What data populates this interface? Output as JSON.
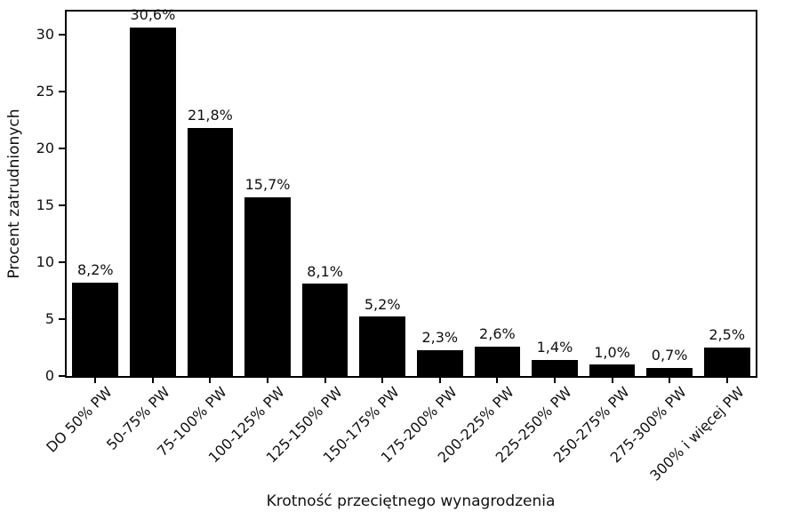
{
  "chart_data": {
    "type": "bar",
    "title": "",
    "xlabel": "Krotność przeciętnego wynagrodzenia",
    "ylabel": "Procent zatrudnionych",
    "categories": [
      "DO 50% PW",
      "50-75% PW",
      "75-100% PW",
      "100-125% PW",
      "125-150% PW",
      "150-175% PW",
      "175-200% PW",
      "200-225% PW",
      "225-250% PW",
      "250-275% PW",
      "275-300% PW",
      "300% i więcej PW"
    ],
    "values": [
      8.2,
      30.6,
      21.8,
      15.7,
      8.1,
      5.2,
      2.3,
      2.6,
      1.4,
      1.0,
      0.7,
      2.5
    ],
    "value_labels": [
      "8,2%",
      "30,6%",
      "21,8%",
      "15,7%",
      "8,1%",
      "5,2%",
      "2,3%",
      "2,6%",
      "1,4%",
      "1,0%",
      "0,7%",
      "2,5%"
    ],
    "yticks": [
      0,
      5,
      10,
      15,
      20,
      25,
      30
    ],
    "ylim": [
      0,
      32
    ],
    "grid": false,
    "legend_position": "none",
    "bar_color": "#000000",
    "background_color": "#ffffff",
    "text_color": "#111111",
    "xtick_rotation_deg": 45
  }
}
